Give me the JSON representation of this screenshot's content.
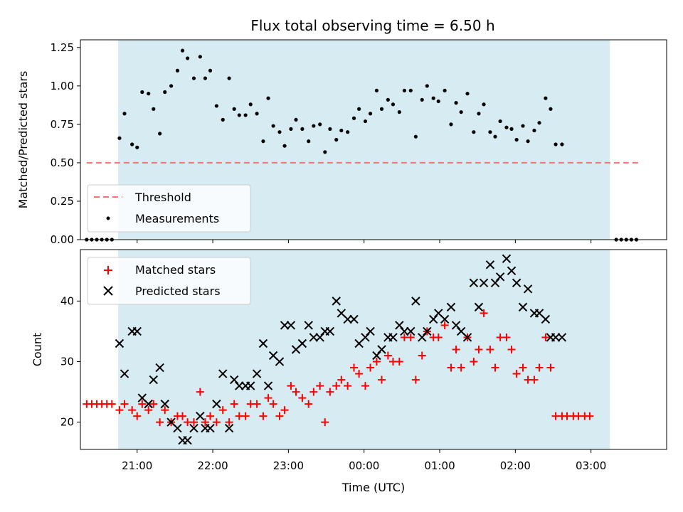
{
  "chart_data": [
    {
      "type": "scatter",
      "title": "Flux total observing time = 6.50 h",
      "ylabel": "Matched/Predicted stars",
      "xlabel": "",
      "xlim": [
        "20:15",
        "04:00"
      ],
      "ylim": [
        0,
        1.3
      ],
      "yticks": [
        "0.00",
        "0.25",
        "0.50",
        "0.75",
        "1.00",
        "1.25"
      ],
      "shaded_span": [
        "20:45",
        "03:15"
      ],
      "legend": {
        "position": "lower-left",
        "entries": [
          "Threshold",
          "Measurements"
        ]
      },
      "threshold": {
        "name": "Threshold",
        "value": 0.5,
        "x_range": [
          "20:20",
          "03:40"
        ],
        "color": "#f07474"
      },
      "series": [
        {
          "name": "Measurements",
          "color": "#000000",
          "points": [
            [
              "20:20",
              0.0
            ],
            [
              "20:24",
              0.0
            ],
            [
              "20:28",
              0.0
            ],
            [
              "20:32",
              0.0
            ],
            [
              "20:36",
              0.0
            ],
            [
              "20:40",
              0.0
            ],
            [
              "20:46",
              0.66
            ],
            [
              "20:50",
              0.82
            ],
            [
              "20:56",
              0.62
            ],
            [
              "21:00",
              0.6
            ],
            [
              "21:04",
              0.96
            ],
            [
              "21:09",
              0.95
            ],
            [
              "21:13",
              0.85
            ],
            [
              "21:18",
              0.69
            ],
            [
              "21:22",
              0.96
            ],
            [
              "21:27",
              1.0
            ],
            [
              "21:32",
              1.1
            ],
            [
              "21:36",
              1.23
            ],
            [
              "21:40",
              1.18
            ],
            [
              "21:45",
              1.05
            ],
            [
              "21:50",
              1.19
            ],
            [
              "21:54",
              1.05
            ],
            [
              "21:58",
              1.1
            ],
            [
              "22:03",
              0.87
            ],
            [
              "22:08",
              0.78
            ],
            [
              "22:13",
              1.05
            ],
            [
              "22:17",
              0.85
            ],
            [
              "22:21",
              0.81
            ],
            [
              "22:26",
              0.81
            ],
            [
              "22:30",
              0.88
            ],
            [
              "22:35",
              0.82
            ],
            [
              "22:40",
              0.64
            ],
            [
              "22:44",
              0.92
            ],
            [
              "22:48",
              0.74
            ],
            [
              "22:53",
              0.7
            ],
            [
              "22:57",
              0.61
            ],
            [
              "23:02",
              0.72
            ],
            [
              "23:06",
              0.78
            ],
            [
              "23:11",
              0.72
            ],
            [
              "23:16",
              0.64
            ],
            [
              "23:20",
              0.74
            ],
            [
              "23:25",
              0.75
            ],
            [
              "23:29",
              0.57
            ],
            [
              "23:33",
              0.72
            ],
            [
              "23:38",
              0.65
            ],
            [
              "23:42",
              0.71
            ],
            [
              "23:47",
              0.7
            ],
            [
              "23:52",
              0.79
            ],
            [
              "23:56",
              0.85
            ],
            [
              "00:01",
              0.77
            ],
            [
              "00:05",
              0.82
            ],
            [
              "00:10",
              0.97
            ],
            [
              "00:14",
              0.85
            ],
            [
              "00:19",
              0.91
            ],
            [
              "00:23",
              0.88
            ],
            [
              "00:28",
              0.83
            ],
            [
              "00:32",
              0.97
            ],
            [
              "00:37",
              0.97
            ],
            [
              "00:41",
              0.67
            ],
            [
              "00:46",
              0.91
            ],
            [
              "00:50",
              1.0
            ],
            [
              "00:55",
              0.92
            ],
            [
              "00:59",
              0.9
            ],
            [
              "01:04",
              0.97
            ],
            [
              "01:09",
              0.75
            ],
            [
              "01:13",
              0.89
            ],
            [
              "01:17",
              0.83
            ],
            [
              "01:22",
              0.95
            ],
            [
              "01:27",
              0.7
            ],
            [
              "01:31",
              0.82
            ],
            [
              "01:35",
              0.88
            ],
            [
              "01:40",
              0.7
            ],
            [
              "01:44",
              0.67
            ],
            [
              "01:48",
              0.77
            ],
            [
              "01:53",
              0.73
            ],
            [
              "01:57",
              0.72
            ],
            [
              "02:01",
              0.65
            ],
            [
              "02:06",
              0.74
            ],
            [
              "02:10",
              0.64
            ],
            [
              "02:15",
              0.71
            ],
            [
              "02:19",
              0.76
            ],
            [
              "02:24",
              0.92
            ],
            [
              "02:28",
              0.85
            ],
            [
              "02:32",
              0.62
            ],
            [
              "02:37",
              0.62
            ],
            [
              "03:20",
              0.0
            ],
            [
              "03:24",
              0.0
            ],
            [
              "03:28",
              0.0
            ],
            [
              "03:32",
              0.0
            ],
            [
              "03:36",
              0.0
            ]
          ]
        }
      ]
    },
    {
      "type": "scatter",
      "title": "",
      "xlabel": "Time (UTC)",
      "ylabel": "Count",
      "xlim": [
        "20:15",
        "04:00"
      ],
      "ylim": [
        15.5,
        48.5
      ],
      "xticks": [
        "21:00",
        "22:00",
        "23:00",
        "00:00",
        "01:00",
        "02:00",
        "03:00"
      ],
      "yticks": [
        "20",
        "30",
        "40"
      ],
      "shaded_span": [
        "20:45",
        "03:15"
      ],
      "legend": {
        "position": "upper-left",
        "entries": [
          "Matched stars",
          "Predicted stars"
        ]
      },
      "series": [
        {
          "name": "Matched stars",
          "marker": "plus",
          "color": "#ff0000",
          "points": [
            [
              "20:20",
              23
            ],
            [
              "20:24",
              23
            ],
            [
              "20:28",
              23
            ],
            [
              "20:32",
              23
            ],
            [
              "20:36",
              23
            ],
            [
              "20:40",
              23
            ],
            [
              "20:46",
              22
            ],
            [
              "20:50",
              23
            ],
            [
              "20:56",
              22
            ],
            [
              "21:00",
              21
            ],
            [
              "21:04",
              23
            ],
            [
              "21:09",
              22
            ],
            [
              "21:13",
              23
            ],
            [
              "21:18",
              20
            ],
            [
              "21:22",
              22
            ],
            [
              "21:27",
              20
            ],
            [
              "21:32",
              21
            ],
            [
              "21:36",
              21
            ],
            [
              "21:40",
              20
            ],
            [
              "21:45",
              20
            ],
            [
              "21:50",
              25
            ],
            [
              "21:54",
              20
            ],
            [
              "21:58",
              21
            ],
            [
              "22:03",
              20
            ],
            [
              "22:08",
              22
            ],
            [
              "22:13",
              20
            ],
            [
              "22:17",
              23
            ],
            [
              "22:21",
              21
            ],
            [
              "22:26",
              21
            ],
            [
              "22:30",
              23
            ],
            [
              "22:35",
              23
            ],
            [
              "22:40",
              21
            ],
            [
              "22:44",
              24
            ],
            [
              "22:48",
              23
            ],
            [
              "22:53",
              21
            ],
            [
              "22:57",
              22
            ],
            [
              "23:02",
              26
            ],
            [
              "23:06",
              25
            ],
            [
              "23:11",
              24
            ],
            [
              "23:16",
              23
            ],
            [
              "23:20",
              25
            ],
            [
              "23:25",
              26
            ],
            [
              "23:29",
              20
            ],
            [
              "23:33",
              25
            ],
            [
              "23:38",
              26
            ],
            [
              "23:42",
              27
            ],
            [
              "23:47",
              26
            ],
            [
              "23:52",
              29
            ],
            [
              "23:56",
              28
            ],
            [
              "00:01",
              26
            ],
            [
              "00:05",
              29
            ],
            [
              "00:10",
              30
            ],
            [
              "00:14",
              27
            ],
            [
              "00:19",
              31
            ],
            [
              "00:23",
              30
            ],
            [
              "00:28",
              30
            ],
            [
              "00:32",
              34
            ],
            [
              "00:37",
              34
            ],
            [
              "00:41",
              27
            ],
            [
              "00:46",
              31
            ],
            [
              "00:50",
              35
            ],
            [
              "00:55",
              34
            ],
            [
              "00:59",
              34
            ],
            [
              "01:04",
              36
            ],
            [
              "01:09",
              29
            ],
            [
              "01:13",
              32
            ],
            [
              "01:17",
              29
            ],
            [
              "01:22",
              34
            ],
            [
              "01:27",
              30
            ],
            [
              "01:31",
              32
            ],
            [
              "01:35",
              38
            ],
            [
              "01:40",
              32
            ],
            [
              "01:44",
              29
            ],
            [
              "01:48",
              34
            ],
            [
              "01:53",
              34
            ],
            [
              "01:57",
              32
            ],
            [
              "02:01",
              28
            ],
            [
              "02:06",
              29
            ],
            [
              "02:10",
              27
            ],
            [
              "02:15",
              27
            ],
            [
              "02:19",
              29
            ],
            [
              "02:24",
              34
            ],
            [
              "02:28",
              29
            ],
            [
              "02:32",
              21
            ],
            [
              "02:37",
              21
            ],
            [
              "02:41",
              21
            ],
            [
              "02:46",
              21
            ],
            [
              "02:50",
              21
            ],
            [
              "02:55",
              21
            ],
            [
              "02:59",
              21
            ]
          ]
        },
        {
          "name": "Predicted stars",
          "marker": "x",
          "color": "#000000",
          "points": [
            [
              "20:46",
              33
            ],
            [
              "20:50",
              28
            ],
            [
              "20:56",
              35
            ],
            [
              "21:00",
              35
            ],
            [
              "21:04",
              24
            ],
            [
              "21:09",
              23
            ],
            [
              "21:13",
              27
            ],
            [
              "21:18",
              29
            ],
            [
              "21:22",
              23
            ],
            [
              "21:27",
              20
            ],
            [
              "21:32",
              19
            ],
            [
              "21:36",
              17
            ],
            [
              "21:40",
              17
            ],
            [
              "21:45",
              19
            ],
            [
              "21:50",
              21
            ],
            [
              "21:54",
              19
            ],
            [
              "21:58",
              19
            ],
            [
              "22:03",
              23
            ],
            [
              "22:08",
              28
            ],
            [
              "22:13",
              19
            ],
            [
              "22:17",
              27
            ],
            [
              "22:21",
              26
            ],
            [
              "22:26",
              26
            ],
            [
              "22:30",
              26
            ],
            [
              "22:35",
              28
            ],
            [
              "22:40",
              33
            ],
            [
              "22:44",
              26
            ],
            [
              "22:48",
              31
            ],
            [
              "22:53",
              30
            ],
            [
              "22:57",
              36
            ],
            [
              "23:02",
              36
            ],
            [
              "23:06",
              32
            ],
            [
              "23:11",
              33
            ],
            [
              "23:16",
              36
            ],
            [
              "23:20",
              34
            ],
            [
              "23:25",
              34
            ],
            [
              "23:29",
              35
            ],
            [
              "23:33",
              35
            ],
            [
              "23:38",
              40
            ],
            [
              "23:42",
              38
            ],
            [
              "23:47",
              37
            ],
            [
              "23:52",
              37
            ],
            [
              "23:56",
              33
            ],
            [
              "00:01",
              34
            ],
            [
              "00:05",
              35
            ],
            [
              "00:10",
              31
            ],
            [
              "00:14",
              32
            ],
            [
              "00:19",
              34
            ],
            [
              "00:23",
              34
            ],
            [
              "00:28",
              36
            ],
            [
              "00:32",
              35
            ],
            [
              "00:37",
              35
            ],
            [
              "00:41",
              40
            ],
            [
              "00:46",
              34
            ],
            [
              "00:50",
              35
            ],
            [
              "00:55",
              37
            ],
            [
              "00:59",
              38
            ],
            [
              "01:04",
              37
            ],
            [
              "01:09",
              39
            ],
            [
              "01:13",
              36
            ],
            [
              "01:17",
              35
            ],
            [
              "01:22",
              34
            ],
            [
              "01:27",
              43
            ],
            [
              "01:31",
              39
            ],
            [
              "01:35",
              43
            ],
            [
              "01:40",
              46
            ],
            [
              "01:44",
              43
            ],
            [
              "01:48",
              44
            ],
            [
              "01:53",
              47
            ],
            [
              "01:57",
              45
            ],
            [
              "02:01",
              43
            ],
            [
              "02:06",
              39
            ],
            [
              "02:10",
              42
            ],
            [
              "02:15",
              38
            ],
            [
              "02:19",
              38
            ],
            [
              "02:24",
              37
            ],
            [
              "02:28",
              34
            ],
            [
              "02:32",
              34
            ],
            [
              "02:37",
              34
            ]
          ]
        }
      ]
    }
  ]
}
